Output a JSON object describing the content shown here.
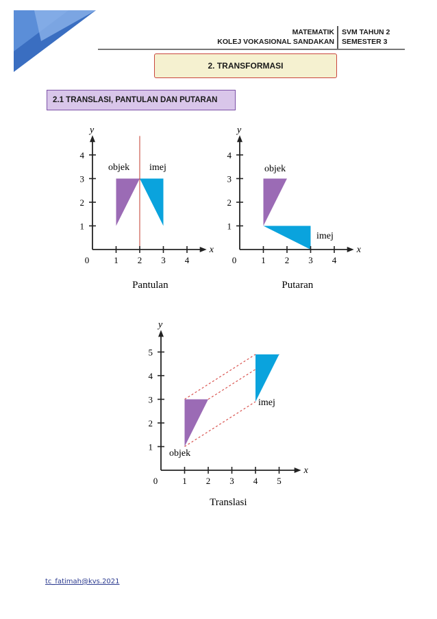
{
  "header": {
    "subject": "MATEMATIK",
    "college": "KOLEJ VOKASIONAL SANDAKAN",
    "level": "SVM TAHUN 2",
    "semester": "SEMESTER 3"
  },
  "chapter_title": "2.    TRANSFORMASI",
  "section_title": "2.1  TRANSLASI, PANTULAN DAN PUTARAN",
  "footer_text": "tc_fatimah@kvs.2021",
  "colors": {
    "object": "#9b6bb5",
    "image": "#0aa3dd",
    "mirror": "#c0392b",
    "dashed": "#d9534f"
  },
  "chart_data": [
    {
      "type": "diagram",
      "title": "Pantulan",
      "xlabel": "x",
      "ylabel": "y",
      "xticks": [
        "1",
        "2",
        "3",
        "4"
      ],
      "yticks": [
        "1",
        "2",
        "3",
        "4"
      ],
      "origin": "0",
      "xlim": [
        0,
        4.6
      ],
      "ylim": [
        0,
        4.6
      ],
      "object_label": "objek",
      "image_label": "imej",
      "object": [
        [
          1,
          3
        ],
        [
          2,
          3
        ],
        [
          1,
          1
        ]
      ],
      "image": [
        [
          2,
          3
        ],
        [
          3,
          3
        ],
        [
          3,
          1
        ]
      ],
      "mirror_line_x": 2
    },
    {
      "type": "diagram",
      "title": "Putaran",
      "xlabel": "x",
      "ylabel": "y",
      "xticks": [
        "1",
        "2",
        "3",
        "4"
      ],
      "yticks": [
        "1",
        "2",
        "3",
        "4"
      ],
      "origin": "0",
      "xlim": [
        0,
        4.6
      ],
      "ylim": [
        0,
        4.6
      ],
      "object_label": "objek",
      "image_label": "imej",
      "object": [
        [
          1,
          3
        ],
        [
          2,
          3
        ],
        [
          1,
          1
        ]
      ],
      "image": [
        [
          1,
          1
        ],
        [
          3,
          1
        ],
        [
          3,
          0
        ]
      ]
    },
    {
      "type": "diagram",
      "title": "Translasi",
      "xlabel": "x",
      "ylabel": "y",
      "xticks": [
        "1",
        "2",
        "3",
        "4",
        "5"
      ],
      "yticks": [
        "1",
        "2",
        "3",
        "4",
        "5"
      ],
      "origin": "0",
      "xlim": [
        0,
        5.7
      ],
      "ylim": [
        0,
        5.7
      ],
      "object_label": "objek",
      "image_label": "imej",
      "object": [
        [
          1,
          3
        ],
        [
          2,
          3
        ],
        [
          1,
          1
        ]
      ],
      "image": [
        [
          4,
          4.9
        ],
        [
          5,
          4.9
        ],
        [
          4,
          2.9
        ]
      ]
    }
  ]
}
